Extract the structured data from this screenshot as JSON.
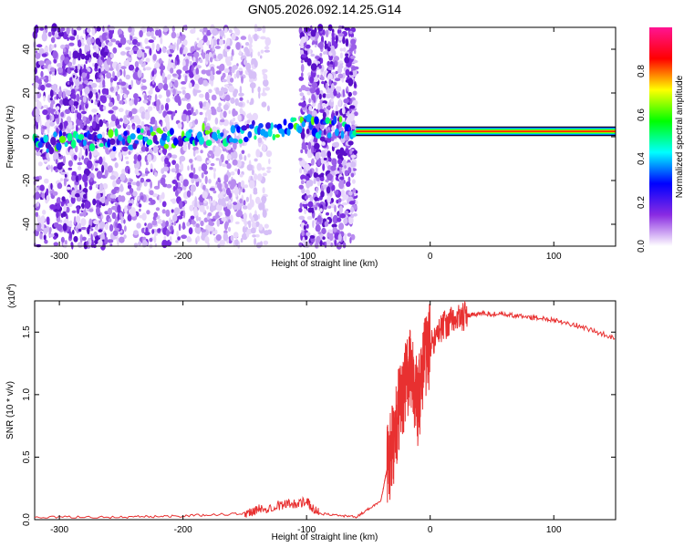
{
  "title": "GN05.2026.092.14.25.G14",
  "chart_data": [
    {
      "type": "heatmap",
      "ylabel": "Frequency (Hz)",
      "xlabel": "Height of straight line (km)",
      "xlim": [
        -320,
        150
      ],
      "ylim": [
        -50,
        50
      ],
      "xticks": [
        -300,
        -200,
        -100,
        0,
        100
      ],
      "yticks": [
        -40,
        -20,
        0,
        20,
        40
      ],
      "colorbar": {
        "label": "Normalized spectral amplitude",
        "range": [
          0,
          1
        ],
        "ticks": [
          0.0,
          0.2,
          0.4,
          0.6,
          0.8
        ],
        "colors": [
          "#ffffff",
          "#8a2be2",
          "#0000ff",
          "#00ffff",
          "#00ff00",
          "#ffff00",
          "#ff0000",
          "#ff1493"
        ]
      },
      "trace": [
        {
          "x": -320,
          "y": -3
        },
        {
          "x": -260,
          "y": -2
        },
        {
          "x": -200,
          "y": 0
        },
        {
          "x": -150,
          "y": 2
        },
        {
          "x": -110,
          "y": 5
        },
        {
          "x": -60,
          "y": 4
        },
        {
          "x": -30,
          "y": 3
        },
        {
          "x": 0,
          "y": 2
        },
        {
          "x": 150,
          "y": 2
        }
      ]
    },
    {
      "type": "line",
      "ylabel": "SNR (10 * v/v)",
      "xlabel": "Height of straight line (km)",
      "y_multiplier": "(x10",
      "y_multiplier_exp": "4",
      "y_multiplier_close": ")",
      "xlim": [
        -320,
        150
      ],
      "ylim": [
        0,
        1.75
      ],
      "xticks": [
        -300,
        -200,
        -100,
        0,
        100
      ],
      "yticks": [
        "0.0",
        "0.5",
        "1.0",
        "1.5"
      ],
      "color": "#e83030",
      "series": [
        {
          "x": [
            -320,
            -250,
            -200,
            -150,
            -140,
            -120,
            -100,
            -90,
            -60,
            -40,
            -35,
            -30,
            -25,
            -20,
            -15,
            -10,
            -5,
            0,
            10,
            20,
            30,
            40,
            60,
            80,
            100,
            120,
            150
          ],
          "y": [
            0.02,
            0.02,
            0.03,
            0.05,
            0.08,
            0.12,
            0.14,
            0.05,
            0.02,
            0.15,
            0.4,
            0.6,
            0.9,
            1.1,
            1.2,
            0.9,
            1.3,
            1.4,
            1.55,
            1.6,
            1.63,
            1.65,
            1.64,
            1.62,
            1.6,
            1.55,
            1.45
          ]
        }
      ]
    }
  ]
}
